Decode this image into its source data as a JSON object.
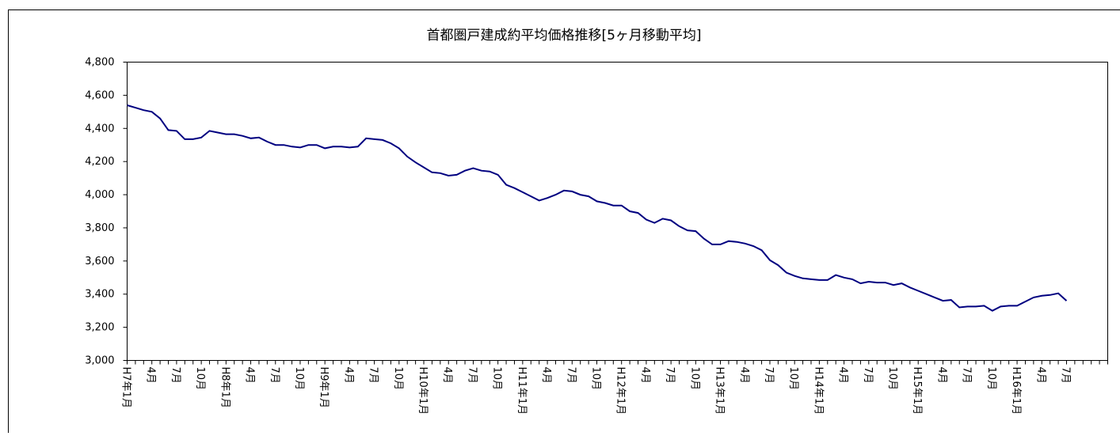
{
  "chart_data": {
    "type": "line",
    "title": "首都圏戸建成約平均価格推移[5ヶ月移動平均]",
    "categories": [
      "H7年1月",
      null,
      null,
      "4月",
      null,
      null,
      "7月",
      null,
      null,
      "10月",
      null,
      null,
      "H8年1月",
      null,
      null,
      "4月",
      null,
      null,
      "7月",
      null,
      null,
      "10月",
      null,
      null,
      "H9年1月",
      null,
      null,
      "4月",
      null,
      null,
      "7月",
      null,
      null,
      "10月",
      null,
      null,
      "H10年1月",
      null,
      null,
      "4月",
      null,
      null,
      "7月",
      null,
      null,
      "10月",
      null,
      null,
      "H11年1月",
      null,
      null,
      "4月",
      null,
      null,
      "7月",
      null,
      null,
      "10月",
      null,
      null,
      "H12年1月",
      null,
      null,
      "4月",
      null,
      null,
      "7月",
      null,
      null,
      "10月",
      null,
      null,
      "H13年1月",
      null,
      null,
      "4月",
      null,
      null,
      "7月",
      null,
      null,
      "10月",
      null,
      null,
      "H14年1月",
      null,
      null,
      "4月",
      null,
      null,
      "7月",
      null,
      null,
      "10月",
      null,
      null,
      "H15年1月",
      null,
      null,
      "4月",
      null,
      null,
      "7月",
      null,
      null,
      "10月",
      null,
      null,
      "H16年1月",
      null,
      null,
      "4月",
      null,
      null,
      "7月",
      null,
      null,
      null,
      null,
      null
    ],
    "values": [
      4540,
      4525,
      4510,
      4500,
      4460,
      4390,
      4385,
      4335,
      4335,
      4345,
      4385,
      4375,
      4365,
      4365,
      4355,
      4340,
      4345,
      4320,
      4300,
      4300,
      4290,
      4285,
      4300,
      4300,
      4280,
      4290,
      4290,
      4285,
      4290,
      4340,
      4335,
      4330,
      4310,
      4280,
      4230,
      4195,
      4165,
      4135,
      4130,
      4115,
      4120,
      4145,
      4160,
      4145,
      4140,
      4120,
      4060,
      4040,
      4015,
      3990,
      3965,
      3980,
      4000,
      4025,
      4020,
      4000,
      3990,
      3960,
      3950,
      3935,
      3935,
      3900,
      3890,
      3850,
      3830,
      3855,
      3845,
      3810,
      3785,
      3780,
      3735,
      3700,
      3700,
      3720,
      3715,
      3705,
      3690,
      3665,
      3605,
      3575,
      3530,
      3510,
      3495,
      3490,
      3485,
      3485,
      3515,
      3500,
      3490,
      3465,
      3475,
      3470,
      3470,
      3455,
      3465,
      3440,
      3420,
      3400,
      3380,
      3360,
      3365,
      3320,
      3325,
      3325,
      3330,
      3300,
      3325,
      3330,
      3330,
      3355,
      3380,
      3390,
      3395,
      3405,
      3360,
      null,
      null,
      null,
      null,
      null
    ],
    "color": "#000080",
    "ylim": [
      3000,
      4800
    ],
    "yticks": [
      {
        "value": 3000,
        "label": "3,000"
      },
      {
        "value": 3200,
        "label": "3,200"
      },
      {
        "value": 3400,
        "label": "3,400"
      },
      {
        "value": 3600,
        "label": "3,600"
      },
      {
        "value": 3800,
        "label": "3,800"
      },
      {
        "value": 4000,
        "label": "4,000"
      },
      {
        "value": 4200,
        "label": "4,200"
      },
      {
        "value": 4400,
        "label": "4,400"
      },
      {
        "value": 4600,
        "label": "4,600"
      },
      {
        "value": 4800,
        "label": "4,800"
      }
    ],
    "grid": false
  }
}
